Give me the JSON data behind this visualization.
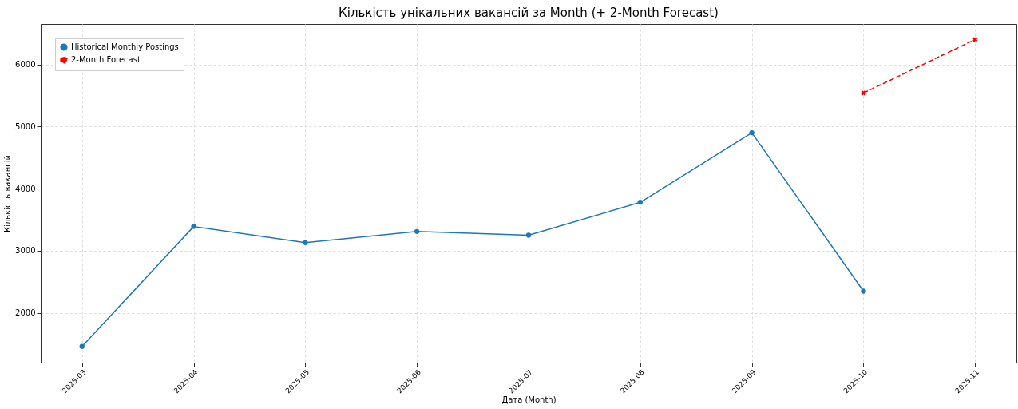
{
  "chart_data": {
    "type": "line",
    "title": "Кількість унікальних вакансій за Month (+ 2-Month Forecast)",
    "xlabel": "Дата (Month)",
    "ylabel": "Кількість вакансій",
    "categories": [
      "2025-03",
      "2025-04",
      "2025-05",
      "2025-06",
      "2025-07",
      "2025-08",
      "2025-09",
      "2025-10",
      "2025-11"
    ],
    "series": [
      {
        "name": "Historical Monthly Postings",
        "color": "#1f77b4",
        "marker": "circle",
        "line_style": "solid",
        "values": [
          1460,
          3390,
          3130,
          3310,
          3250,
          3780,
          4900,
          2350,
          null
        ]
      },
      {
        "name": "2-Month Forecast",
        "color": "#ff0000",
        "marker": "cross",
        "line_style": "dashed",
        "values": [
          null,
          null,
          null,
          null,
          null,
          null,
          null,
          5540,
          6400
        ]
      }
    ],
    "ylim": [
      1200,
      6650
    ],
    "yticks": [
      2000,
      3000,
      4000,
      5000,
      6000
    ],
    "grid": true,
    "legend": "top left"
  }
}
